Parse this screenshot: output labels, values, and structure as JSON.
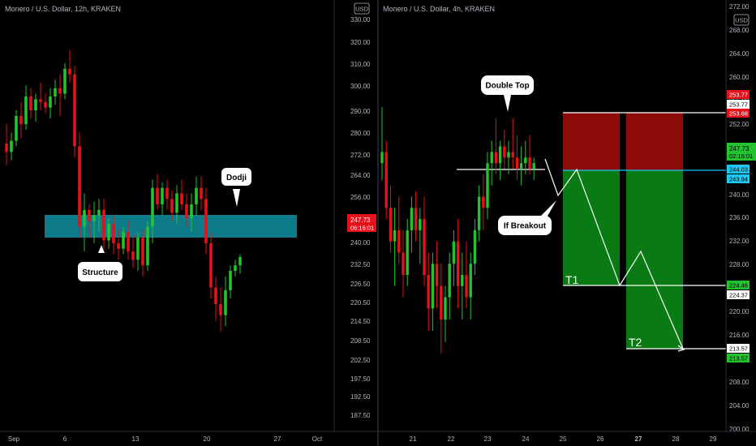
{
  "colors": {
    "background": "#000000",
    "up": "#22c32e",
    "down": "#e5111b",
    "axis_text": "#b2b5be",
    "zone_teal": "#0d7b8a",
    "stop_zone": "#8e0b0b",
    "target_zone": "#0a7a14",
    "separator": "#2a2e39"
  },
  "left_chart": {
    "title": "Monero / U.S. Dollar, 12h, KRAKEN",
    "currency_label": "USD",
    "current_price": "247.73",
    "countdown": "06:16:01",
    "y_ticks": [
      "330.00",
      "320.00",
      "310.00",
      "300.00",
      "290.00",
      "280.00",
      "272.00",
      "264.00",
      "256.00",
      "248.00",
      "240.00",
      "232.50",
      "226.50",
      "220.50",
      "214.50",
      "208.50",
      "202.50",
      "197.50",
      "192.50",
      "187.50"
    ],
    "x_ticks": [
      "Sep",
      "6",
      "13",
      "20",
      "27",
      "Oct"
    ],
    "annotations": {
      "structure": "Structure",
      "doji": "Dodji"
    }
  },
  "right_chart": {
    "title": "Monero / U.S. Dollar, 4h, KRAKEN",
    "currency_label": "USD",
    "y_ticks": [
      "272.00",
      "268.00",
      "264.00",
      "260.00",
      "256.00",
      "252.00",
      "244.00",
      "240.00",
      "236.00",
      "232.00",
      "228.00",
      "220.00",
      "216.00",
      "212.00",
      "208.00",
      "204.00",
      "200.00"
    ],
    "x_ticks": [
      "21",
      "22",
      "23",
      "24",
      "25",
      "26",
      "27",
      "28",
      "29"
    ],
    "price_labels": {
      "stop_top": "253.77",
      "stop_mid": "253.77",
      "stop_low": "253.68",
      "current": "247.73",
      "countdown": "02:16:01",
      "entry_top": "244.03",
      "entry_low": "243.94",
      "t1_a": "224.46",
      "t1_b": "224.37",
      "t2_a": "213.57",
      "t2_b": "213.57"
    },
    "annotations": {
      "double_top": "Double Top",
      "if_breakout": "If Breakout",
      "t1": "T1",
      "t2": "T2"
    }
  },
  "chart_data": [
    {
      "type": "candlestick",
      "title": "Monero / U.S. Dollar, 12h, KRAKEN",
      "x_ticks": [
        "Sep",
        "6",
        "13",
        "20",
        "27",
        "Oct"
      ],
      "ylim": [
        184,
        334
      ],
      "support_zone": [
        240,
        245
      ],
      "candles": [
        [
          288,
          295,
          280,
          285
        ],
        [
          285,
          292,
          282,
          289
        ],
        [
          289,
          300,
          287,
          298
        ],
        [
          298,
          303,
          290,
          295
        ],
        [
          295,
          309,
          293,
          305
        ],
        [
          305,
          308,
          297,
          300
        ],
        [
          300,
          306,
          296,
          304
        ],
        [
          304,
          310,
          300,
          303
        ],
        [
          303,
          306,
          299,
          301
        ],
        [
          301,
          308,
          297,
          305
        ],
        [
          305,
          311,
          302,
          308
        ],
        [
          308,
          313,
          298,
          306
        ],
        [
          306,
          317,
          304,
          315
        ],
        [
          315,
          322,
          310,
          313
        ],
        [
          313,
          316,
          283,
          287
        ],
        [
          287,
          292,
          254,
          258
        ],
        [
          258,
          270,
          249,
          264
        ],
        [
          264,
          266,
          254,
          260
        ],
        [
          260,
          267,
          252,
          262
        ],
        [
          262,
          268,
          256,
          264
        ],
        [
          264,
          268,
          250,
          253
        ],
        [
          253,
          261,
          250,
          259
        ],
        [
          259,
          262,
          248,
          252
        ],
        [
          252,
          257,
          246,
          250
        ],
        [
          250,
          258,
          248,
          256
        ],
        [
          256,
          260,
          246,
          249
        ],
        [
          249,
          255,
          243,
          246
        ],
        [
          246,
          256,
          242,
          254
        ],
        [
          254,
          257,
          240,
          244
        ],
        [
          244,
          260,
          242,
          258
        ],
        [
          258,
          275,
          252,
          272
        ],
        [
          272,
          277,
          264,
          266
        ],
        [
          266,
          274,
          262,
          272
        ],
        [
          272,
          275,
          264,
          268
        ],
        [
          268,
          271,
          260,
          263
        ],
        [
          263,
          273,
          259,
          270
        ],
        [
          270,
          275,
          264,
          266
        ],
        [
          266,
          270,
          258,
          261
        ],
        [
          261,
          270,
          256,
          266
        ],
        [
          266,
          276,
          262,
          272
        ],
        [
          272,
          276,
          264,
          268
        ],
        [
          268,
          272,
          248,
          252
        ],
        [
          252,
          256,
          232,
          236
        ],
        [
          236,
          240,
          224,
          230
        ],
        [
          230,
          236,
          220,
          226
        ],
        [
          226,
          240,
          222,
          235
        ],
        [
          235,
          244,
          232,
          242
        ],
        [
          242,
          246,
          240,
          244
        ],
        [
          244,
          248,
          241,
          247
        ]
      ]
    },
    {
      "type": "candlestick",
      "title": "Monero / U.S. Dollar, 4h, KRAKEN",
      "x_ticks": [
        "21",
        "22",
        "23",
        "24",
        "25",
        "26",
        "27",
        "28",
        "29"
      ],
      "ylim": [
        200,
        274
      ],
      "resistance": 253.77,
      "neckline": 244.03,
      "targets": {
        "T1": 224.46,
        "T2": 213.57
      },
      "candles": [
        [
          248,
          258,
          245,
          250
        ],
        [
          250,
          252,
          238,
          240
        ],
        [
          240,
          244,
          232,
          234
        ],
        [
          234,
          240,
          226,
          236
        ],
        [
          236,
          242,
          230,
          232
        ],
        [
          232,
          236,
          224,
          228
        ],
        [
          228,
          238,
          226,
          236
        ],
        [
          236,
          242,
          232,
          240
        ],
        [
          240,
          243,
          234,
          236
        ],
        [
          236,
          240,
          230,
          238
        ],
        [
          238,
          242,
          226,
          228
        ],
        [
          228,
          232,
          218,
          222
        ],
        [
          222,
          232,
          218,
          230
        ],
        [
          230,
          234,
          222,
          226
        ],
        [
          226,
          230,
          214,
          220
        ],
        [
          220,
          226,
          216,
          224
        ],
        [
          224,
          232,
          220,
          230
        ],
        [
          230,
          236,
          226,
          234
        ],
        [
          234,
          238,
          222,
          226
        ],
        [
          226,
          232,
          220,
          228
        ],
        [
          228,
          234,
          222,
          224
        ],
        [
          224,
          232,
          220,
          230
        ],
        [
          230,
          238,
          228,
          236
        ],
        [
          236,
          244,
          234,
          242
        ],
        [
          242,
          246,
          236,
          240
        ],
        [
          240,
          250,
          238,
          248
        ],
        [
          248,
          252,
          244,
          250
        ],
        [
          250,
          256,
          246,
          248
        ],
        [
          248,
          252,
          245,
          251
        ],
        [
          251,
          254,
          247,
          249
        ],
        [
          249,
          252,
          246,
          250
        ],
        [
          250,
          256,
          247,
          249
        ],
        [
          249,
          253,
          245,
          247
        ],
        [
          247,
          251,
          244,
          248
        ],
        [
          248,
          252,
          246,
          249
        ],
        [
          249,
          253,
          246,
          247
        ],
        [
          247,
          249,
          245,
          248
        ]
      ]
    }
  ]
}
